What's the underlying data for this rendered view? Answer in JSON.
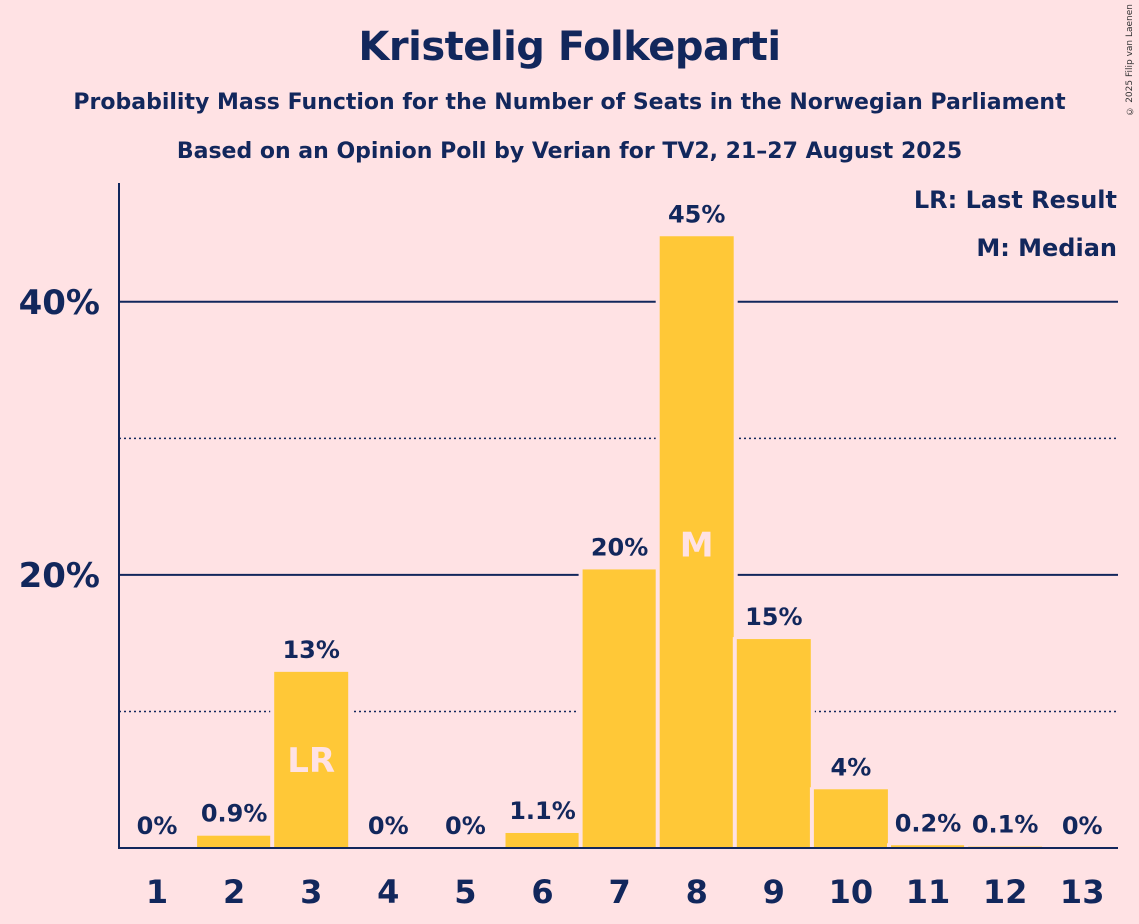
{
  "title": "Kristelig Folkeparti",
  "subtitle_1": "Probability Mass Function for the Number of Seats in the Norwegian Parliament",
  "subtitle_2": "Based on an Opinion Poll by Verian for TV2, 21–27 August 2025",
  "copyright": "© 2025 Filip van Laenen",
  "legend": {
    "last_result": "LR: Last Result",
    "median": "M: Median"
  },
  "colors": {
    "background": "#FFE2E4",
    "bar": "#FFC837",
    "text": "#12275C",
    "marker_text": "#FFE2E4"
  },
  "chart_data": {
    "type": "bar",
    "categories": [
      "1",
      "2",
      "3",
      "4",
      "5",
      "6",
      "7",
      "8",
      "9",
      "10",
      "11",
      "12",
      "13"
    ],
    "values": [
      0,
      0.9,
      12.9,
      0,
      0,
      1.1,
      20.4,
      44.8,
      15.3,
      4.3,
      0.2,
      0.1,
      0
    ],
    "data_labels": [
      "0%",
      "0.9%",
      "13%",
      "0%",
      "0%",
      "1.1%",
      "20%",
      "45%",
      "15%",
      "4%",
      "0.2%",
      "0.1%",
      "0%"
    ],
    "bar_markers": [
      {
        "category": "3",
        "label": "LR"
      },
      {
        "category": "8",
        "label": "M"
      }
    ],
    "y_ticks": [
      {
        "value": 20,
        "label": "20%"
      },
      {
        "value": 40,
        "label": "40%"
      }
    ],
    "minor_gridlines": [
      10,
      30
    ],
    "ylim": [
      0,
      48.7
    ],
    "grid": true,
    "legend_position": "top-right"
  }
}
